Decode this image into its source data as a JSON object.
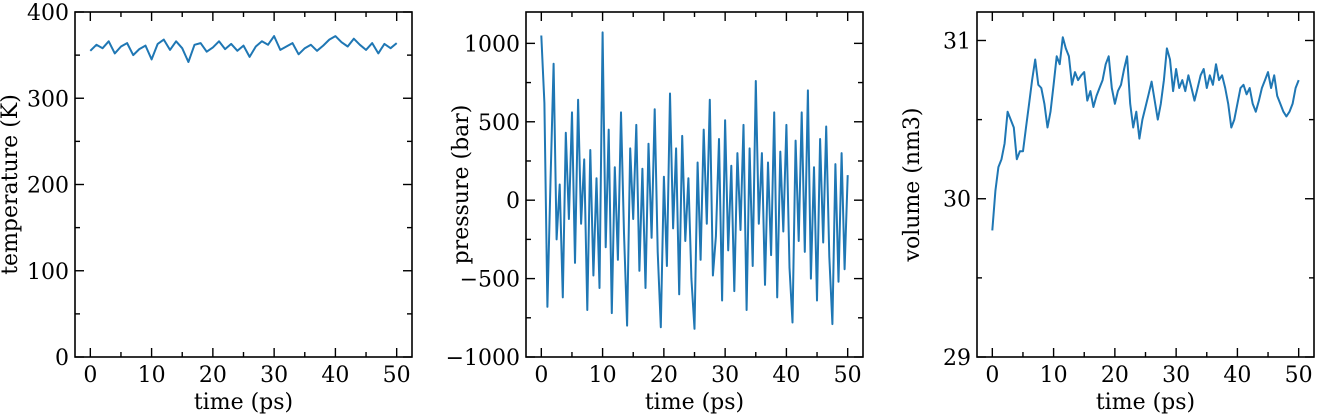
{
  "colors": {
    "series": "#1f77b4",
    "axes": "#000000",
    "background": "#ffffff"
  },
  "chart_data": [
    {
      "type": "line",
      "xlabel": "time (ps)",
      "ylabel": "temperature (K)",
      "xlim": [
        -2.5,
        52.5
      ],
      "ylim": [
        0,
        400
      ],
      "xticks": [
        0,
        10,
        20,
        30,
        40,
        50
      ],
      "xtick_labels": [
        "0",
        "10",
        "20",
        "30",
        "40",
        "50"
      ],
      "yticks": [
        0,
        100,
        200,
        300,
        400
      ],
      "ytick_labels": [
        "0",
        "100",
        "200",
        "300",
        "400"
      ],
      "minor_yticks": [
        50,
        150,
        250,
        350
      ],
      "grid": false,
      "series": [
        {
          "x": [
            0,
            1,
            2,
            3,
            4,
            5,
            6,
            7,
            8,
            9,
            10,
            11,
            12,
            13,
            14,
            15,
            16,
            17,
            18,
            19,
            20,
            21,
            22,
            23,
            24,
            25,
            26,
            27,
            28,
            29,
            30,
            31,
            32,
            33,
            34,
            35,
            36,
            37,
            38,
            39,
            40,
            41,
            42,
            43,
            44,
            45,
            46,
            47,
            48,
            49,
            50
          ],
          "values": [
            355,
            362,
            358,
            366,
            352,
            360,
            364,
            350,
            357,
            361,
            345,
            363,
            368,
            356,
            366,
            358,
            342,
            362,
            364,
            354,
            359,
            366,
            357,
            363,
            355,
            361,
            348,
            360,
            366,
            362,
            372,
            356,
            360,
            364,
            351,
            358,
            362,
            355,
            361,
            368,
            372,
            365,
            360,
            369,
            362,
            356,
            364,
            352,
            363,
            358,
            364
          ]
        }
      ]
    },
    {
      "type": "line",
      "xlabel": "time (ps)",
      "ylabel": "pressure (bar)",
      "xlim": [
        -2.5,
        52.5
      ],
      "ylim": [
        -1000,
        1200
      ],
      "xticks": [
        0,
        10,
        20,
        30,
        40,
        50
      ],
      "xtick_labels": [
        "0",
        "10",
        "20",
        "30",
        "40",
        "50"
      ],
      "yticks": [
        -1000,
        -500,
        0,
        500,
        1000
      ],
      "ytick_labels": [
        "−1000",
        "−500",
        "0",
        "500",
        "1000"
      ],
      "minor_yticks": [
        -750,
        -250,
        250,
        750
      ],
      "grid": false,
      "series": [
        {
          "x": [
            0,
            0.5,
            1,
            1.5,
            2,
            2.5,
            3,
            3.5,
            4,
            4.5,
            5,
            5.5,
            6,
            6.5,
            7,
            7.5,
            8,
            8.5,
            9,
            9.5,
            10,
            10.5,
            11,
            11.5,
            12,
            12.5,
            13,
            13.5,
            14,
            14.5,
            15,
            15.5,
            16,
            16.5,
            17,
            17.5,
            18,
            18.5,
            19,
            19.5,
            20,
            20.5,
            21,
            21.5,
            22,
            22.5,
            23,
            23.5,
            24,
            24.5,
            25,
            25.5,
            26,
            26.5,
            27,
            27.5,
            28,
            28.5,
            29,
            29.5,
            30,
            30.5,
            31,
            31.5,
            32,
            32.5,
            33,
            33.5,
            34,
            34.5,
            35,
            35.5,
            36,
            36.5,
            37,
            37.5,
            38,
            38.5,
            39,
            39.5,
            40,
            40.5,
            41,
            41.5,
            42,
            42.5,
            43,
            43.5,
            44,
            44.5,
            45,
            45.5,
            46,
            46.5,
            47,
            47.5,
            48,
            48.5,
            49,
            49.5,
            50
          ],
          "values": [
            1050,
            620,
            -680,
            120,
            870,
            -250,
            100,
            -620,
            430,
            -120,
            560,
            -400,
            640,
            -150,
            260,
            -700,
            320,
            -480,
            140,
            -560,
            1070,
            -300,
            450,
            -720,
            210,
            -380,
            560,
            -210,
            -800,
            330,
            -120,
            480,
            -450,
            200,
            -560,
            360,
            -240,
            580,
            -330,
            -810,
            150,
            -420,
            680,
            -180,
            330,
            -600,
            410,
            -260,
            140,
            -500,
            -820,
            240,
            -380,
            450,
            -150,
            640,
            -480,
            -230,
            390,
            -640,
            510,
            -320,
            220,
            -580,
            300,
            -190,
            480,
            -700,
            330,
            -420,
            760,
            -150,
            300,
            -540,
            240,
            -350,
            560,
            -620,
            310,
            -200,
            480,
            -430,
            -780,
            380,
            -260,
            560,
            -330,
            700,
            -500,
            210,
            -640,
            390,
            -270,
            470,
            -360,
            -790,
            230,
            -520,
            300,
            -440,
            160
          ]
        }
      ]
    },
    {
      "type": "line",
      "xlabel": "time (ps)",
      "ylabel": "volume (nm3)",
      "xlim": [
        -2.5,
        52.5
      ],
      "ylim": [
        29,
        31.18
      ],
      "xticks": [
        0,
        10,
        20,
        30,
        40,
        50
      ],
      "xtick_labels": [
        "0",
        "10",
        "20",
        "30",
        "40",
        "50"
      ],
      "yticks": [
        29,
        30,
        31
      ],
      "ytick_labels": [
        "29",
        "30",
        "31"
      ],
      "minor_yticks": [
        29.5,
        30.5
      ],
      "grid": false,
      "series": [
        {
          "x": [
            0,
            0.5,
            1,
            1.5,
            2,
            2.5,
            3,
            3.5,
            4,
            4.5,
            5,
            5.5,
            6,
            6.5,
            7,
            7.5,
            8,
            8.5,
            9,
            9.5,
            10,
            10.5,
            11,
            11.5,
            12,
            12.5,
            13,
            13.5,
            14,
            14.5,
            15,
            15.5,
            16,
            16.5,
            17,
            17.5,
            18,
            18.5,
            19,
            19.5,
            20,
            20.5,
            21,
            21.5,
            22,
            22.5,
            23,
            23.5,
            24,
            24.5,
            25,
            25.5,
            26,
            26.5,
            27,
            27.5,
            28,
            28.5,
            29,
            29.5,
            30,
            30.5,
            31,
            31.5,
            32,
            32.5,
            33,
            33.5,
            34,
            34.5,
            35,
            35.5,
            36,
            36.5,
            37,
            37.5,
            38,
            38.5,
            39,
            39.5,
            40,
            40.5,
            41,
            41.5,
            42,
            42.5,
            43,
            43.5,
            44,
            44.5,
            45,
            45.5,
            46,
            46.5,
            47,
            47.5,
            48,
            48.5,
            49,
            49.5,
            50
          ],
          "values": [
            29.8,
            30.05,
            30.2,
            30.25,
            30.35,
            30.55,
            30.5,
            30.45,
            30.25,
            30.3,
            30.3,
            30.45,
            30.6,
            30.75,
            30.88,
            30.72,
            30.7,
            30.6,
            30.45,
            30.55,
            30.72,
            30.9,
            30.85,
            31.02,
            30.95,
            30.9,
            30.72,
            30.8,
            30.75,
            30.78,
            30.8,
            30.62,
            30.68,
            30.58,
            30.65,
            30.7,
            30.75,
            30.85,
            30.9,
            30.7,
            30.6,
            30.68,
            30.72,
            30.82,
            30.9,
            30.6,
            30.45,
            30.55,
            30.38,
            30.5,
            30.58,
            30.66,
            30.74,
            30.62,
            30.5,
            30.6,
            30.75,
            30.95,
            30.88,
            30.68,
            30.82,
            30.7,
            30.75,
            30.68,
            30.78,
            30.7,
            30.62,
            30.7,
            30.78,
            30.82,
            30.7,
            30.78,
            30.72,
            30.85,
            30.75,
            30.78,
            30.7,
            30.6,
            30.45,
            30.5,
            30.6,
            30.7,
            30.72,
            30.66,
            30.7,
            30.6,
            30.55,
            30.62,
            30.7,
            30.75,
            30.8,
            30.7,
            30.78,
            30.65,
            30.6,
            30.55,
            30.52,
            30.55,
            30.6,
            30.7,
            30.75
          ]
        }
      ]
    }
  ]
}
